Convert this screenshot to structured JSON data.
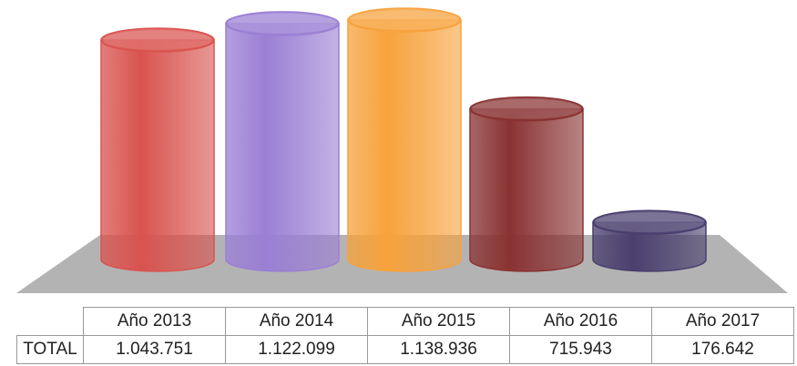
{
  "chart_data": {
    "type": "cylinder",
    "categories": [
      "Año 2013",
      "Año 2014",
      "Año 2015",
      "Año 2016",
      "Año 2017"
    ],
    "row_label": "TOTAL",
    "values": [
      1043751,
      1122099,
      1138936,
      715943,
      176642
    ],
    "value_labels": [
      "1.043.751",
      "1.122.099",
      "1.138.936",
      "715.943",
      "176.642"
    ],
    "colors": [
      "#d9534f",
      "#9b7fd4",
      "#f7a23c",
      "#8a3232",
      "#4a3f6e"
    ]
  }
}
